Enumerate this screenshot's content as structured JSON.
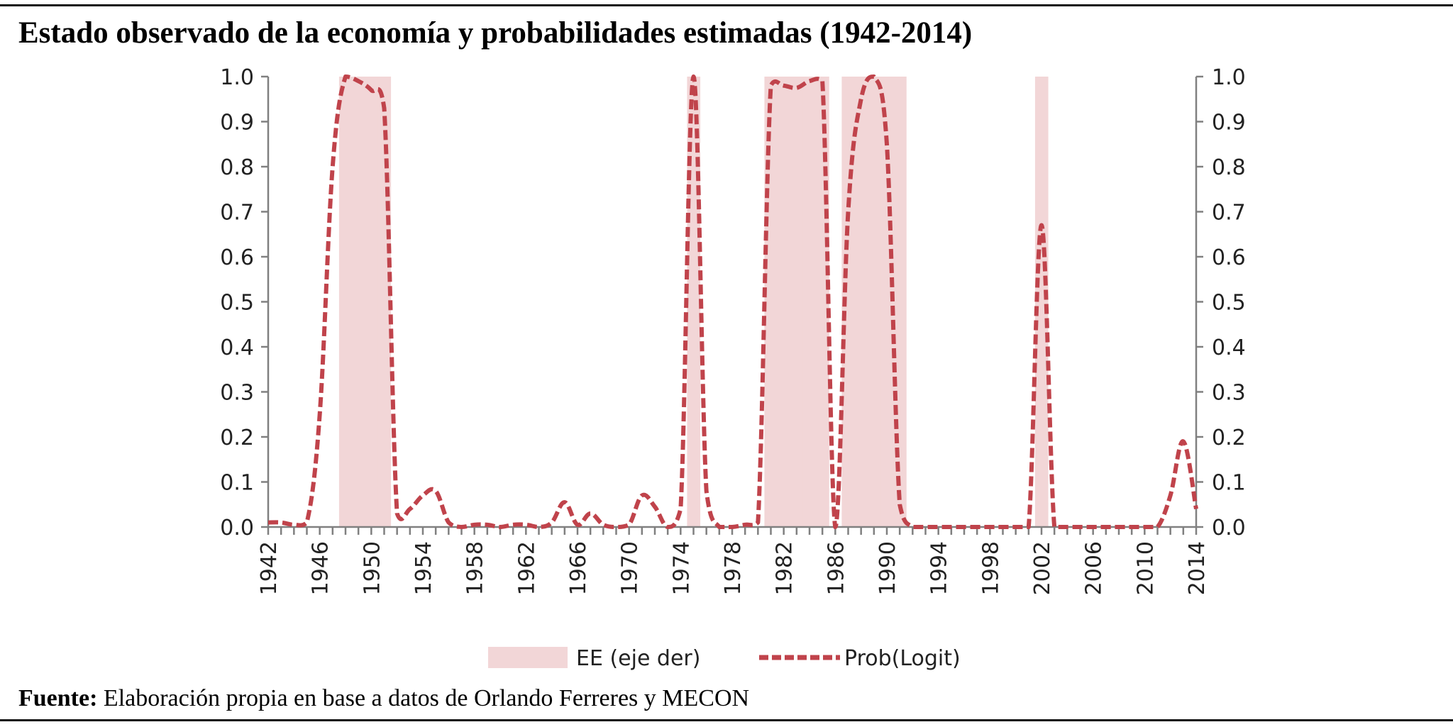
{
  "title": "Estado observado de la economía y probabilidades estimadas (1942-2014)",
  "source": {
    "label": "Fuente:",
    "text": " Elaboración propia en base a datos de Orlando Ferreres y MECON"
  },
  "colors": {
    "line": "#c0434b",
    "shade": "#f2d6d7",
    "axis": "#808080"
  },
  "chart_data": {
    "type": "line",
    "title": "Estado observado de la economía y probabilidades estimadas (1942-2014)",
    "xlabel": "",
    "ylabel": "",
    "xlim": [
      1942,
      2014
    ],
    "ylim": [
      0,
      1
    ],
    "y2lim": [
      0,
      1
    ],
    "grid": false,
    "legend_position": "bottom",
    "x_tick_labels": [
      "1942",
      "1946",
      "1950",
      "1954",
      "1958",
      "1962",
      "1966",
      "1970",
      "1974",
      "1978",
      "1982",
      "1986",
      "1990",
      "1994",
      "1998",
      "2002",
      "2006",
      "2010",
      "2014"
    ],
    "y_tick_labels": [
      "0.0",
      "0.1",
      "0.2",
      "0.3",
      "0.4",
      "0.5",
      "0.6",
      "0.7",
      "0.8",
      "0.9",
      "1.0"
    ],
    "y2_tick_labels": [
      "0.0",
      "0.1",
      "0.2",
      "0.3",
      "0.4",
      "0.5",
      "0.6",
      "0.7",
      "0.8",
      "0.9",
      "1.0"
    ],
    "series": [
      {
        "name": "EE (eje der)",
        "type": "bar",
        "axis": "right",
        "years_equal_1": [
          1948,
          1949,
          1950,
          1951,
          1975,
          1981,
          1982,
          1983,
          1984,
          1985,
          1987,
          1988,
          1989,
          1990,
          1991,
          2002
        ]
      },
      {
        "name": "Prob(Logit)",
        "type": "line",
        "style": "dashed",
        "axis": "left",
        "x": [
          1942,
          1943,
          1944,
          1945,
          1946,
          1947,
          1948,
          1949,
          1950,
          1951,
          1952,
          1953,
          1954,
          1955,
          1956,
          1957,
          1958,
          1959,
          1960,
          1961,
          1962,
          1963,
          1964,
          1965,
          1966,
          1967,
          1968,
          1969,
          1970,
          1971,
          1972,
          1973,
          1974,
          1975,
          1976,
          1977,
          1978,
          1979,
          1980,
          1981,
          1982,
          1983,
          1984,
          1985,
          1986,
          1987,
          1988,
          1989,
          1990,
          1991,
          1992,
          1993,
          1994,
          1995,
          1996,
          1997,
          1998,
          1999,
          2000,
          2001,
          2002,
          2003,
          2004,
          2005,
          2006,
          2007,
          2008,
          2009,
          2010,
          2011,
          2012,
          2013,
          2014
        ],
        "values": [
          0.01,
          0.01,
          0.005,
          0.01,
          0.25,
          0.8,
          1.0,
          0.99,
          0.97,
          0.93,
          0.03,
          0.04,
          0.07,
          0.08,
          0.01,
          0.0,
          0.005,
          0.005,
          0.0,
          0.005,
          0.005,
          0.0,
          0.01,
          0.055,
          0.005,
          0.03,
          0.005,
          0.0,
          0.005,
          0.07,
          0.045,
          0.0,
          0.04,
          1.0,
          0.08,
          0.0,
          0.0,
          0.005,
          0.01,
          0.98,
          0.98,
          0.975,
          0.99,
          0.99,
          0.0,
          0.7,
          0.95,
          1.0,
          0.85,
          0.05,
          0.0,
          0.0,
          0.0,
          0.0,
          0.0,
          0.0,
          0.0,
          0.0,
          0.0,
          0.0,
          0.67,
          0.0,
          0.0,
          0.0,
          0.0,
          0.0,
          0.0,
          0.0,
          0.0,
          0.0,
          0.07,
          0.19,
          0.04
        ]
      }
    ]
  }
}
